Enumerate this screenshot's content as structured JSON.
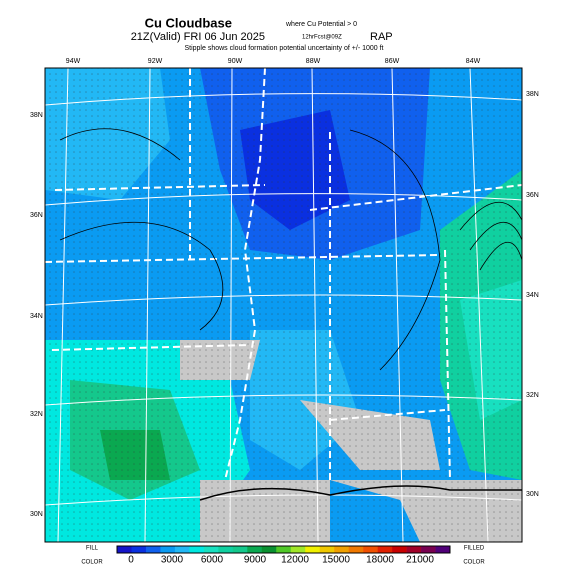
{
  "header": {
    "title": "Cu Cloudbase",
    "title_note": "where Cu Potential > 0",
    "valid": "21Z(Valid) FRI 06 Jun 2025",
    "forecast": "12hrFcst@09Z",
    "model": "RAP",
    "note": "Stipple shows cloud formation potential uncertainty of +/- 1000 ft"
  },
  "map": {
    "lon_labels": [
      "94W",
      "92W",
      "90W",
      "88W",
      "86W",
      "84W"
    ],
    "lat_labels_right": [
      "38N",
      "36N",
      "34N",
      "32N",
      "30N"
    ],
    "lat_labels_left": [
      "38N",
      "36N",
      "34N",
      "32N",
      "30N"
    ]
  },
  "colorbar": {
    "labels": [
      "0",
      "3000",
      "6000",
      "9000",
      "12000",
      "15000",
      "18000",
      "21000"
    ],
    "left_top": "FILL",
    "left_bottom": "COLOR",
    "right_top": "FILLED",
    "right_bottom": "COLOR"
  }
}
